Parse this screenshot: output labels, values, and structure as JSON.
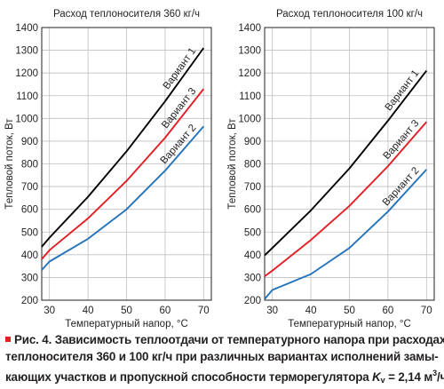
{
  "chart_data": [
    {
      "type": "line",
      "title": "Расход теплоносителя 360 кг/ч",
      "xlabel": "Температурный напор, °С",
      "ylabel": "Тепловой поток, Вт",
      "xlim": [
        28,
        72
      ],
      "ylim": [
        200,
        1400
      ],
      "xticks": [
        "30",
        "40",
        "50",
        "60",
        "70"
      ],
      "yticks": [
        "200",
        "300",
        "400",
        "500",
        "600",
        "700",
        "800",
        "900",
        "1000",
        "1100",
        "1200",
        "1300",
        "1400"
      ],
      "grid": true,
      "series": [
        {
          "name": "Вариант 1",
          "color": "#000000",
          "points": [
            [
              28,
              435
            ],
            [
              30,
              475
            ],
            [
              40,
              655
            ],
            [
              50,
              855
            ],
            [
              60,
              1075
            ],
            [
              70,
              1310
            ]
          ]
        },
        {
          "name": "Вариант 3",
          "color": "#e31e24",
          "points": [
            [
              28,
              380
            ],
            [
              30,
              420
            ],
            [
              40,
              560
            ],
            [
              50,
              725
            ],
            [
              60,
              915
            ],
            [
              70,
              1130
            ]
          ]
        },
        {
          "name": "Вариант 2",
          "color": "#2474bb",
          "points": [
            [
              28,
              333
            ],
            [
              30,
              370
            ],
            [
              40,
              470
            ],
            [
              50,
              600
            ],
            [
              60,
              770
            ],
            [
              70,
              965
            ]
          ]
        }
      ]
    },
    {
      "type": "line",
      "title": "Расход теплоносителя 100 кг/ч",
      "xlabel": "Температурный напор, °С",
      "ylabel": "Тепловой поток, Вт",
      "xlim": [
        28,
        72
      ],
      "ylim": [
        200,
        1400
      ],
      "xticks": [
        "30",
        "40",
        "50",
        "60",
        "70"
      ],
      "yticks": [
        "200",
        "300",
        "400",
        "500",
        "600",
        "700",
        "800",
        "900",
        "1000",
        "1100",
        "1200",
        "1300",
        "1400"
      ],
      "grid": true,
      "series": [
        {
          "name": "Вариант 1",
          "color": "#000000",
          "points": [
            [
              28,
              397
            ],
            [
              30,
              430
            ],
            [
              40,
              595
            ],
            [
              50,
              780
            ],
            [
              60,
              990
            ],
            [
              70,
              1210
            ]
          ]
        },
        {
          "name": "Вариант 3",
          "color": "#e31e24",
          "points": [
            [
              28,
              305
            ],
            [
              30,
              330
            ],
            [
              40,
              465
            ],
            [
              50,
              615
            ],
            [
              60,
              790
            ],
            [
              70,
              985
            ]
          ]
        },
        {
          "name": "Вариант 2",
          "color": "#2474bb",
          "points": [
            [
              28,
              205
            ],
            [
              30,
              245
            ],
            [
              40,
              315
            ],
            [
              50,
              430
            ],
            [
              60,
              590
            ],
            [
              70,
              775
            ]
          ]
        }
      ]
    }
  ],
  "caption": {
    "line1": "Рис. 4. Зависимость теплоотдачи от температурного напора при расходах",
    "line2": "теплоносителя 360 и 100 кг/ч при различных вариантах исполнений замы-",
    "line3_a": "кающих участков и пропускной способности терморегулятора ",
    "line3_k": "K",
    "line3_sub": "v",
    "line3_b": " = 2,14 м",
    "line3_sup": "3",
    "line3_c": "/ч"
  },
  "colors": {
    "accent": "#e31e24",
    "grid": "#bfbfbf"
  }
}
